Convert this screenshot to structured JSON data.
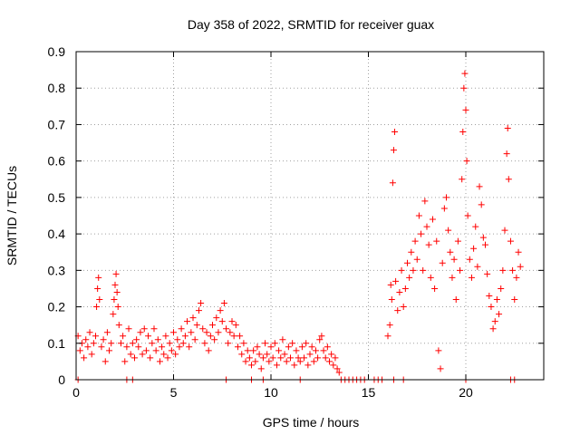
{
  "chart_data": {
    "type": "scatter",
    "title": "Day 358 of 2022, SRMTID for receiver guax",
    "xlabel": "GPS time / hours",
    "ylabel": "SRMTID / TECUs",
    "xlim": [
      0,
      24
    ],
    "ylim": [
      0,
      0.9
    ],
    "grid": true,
    "x_ticks": [
      0,
      5,
      10,
      15,
      20
    ],
    "y_ticks": [
      0,
      0.1,
      0.2,
      0.3,
      0.4,
      0.5,
      0.6,
      0.7,
      0.8,
      0.9
    ],
    "marker": "+",
    "color": "#ff0000",
    "series": [
      {
        "name": "SRMTID",
        "points": [
          [
            0.1,
            0.12
          ],
          [
            0.2,
            0.08
          ],
          [
            0.3,
            0.1
          ],
          [
            0.4,
            0.06
          ],
          [
            0.5,
            0.11
          ],
          [
            0.6,
            0.09
          ],
          [
            0.7,
            0.13
          ],
          [
            0.8,
            0.07
          ],
          [
            0.9,
            0.1
          ],
          [
            1.0,
            0.12
          ],
          [
            1.05,
            0.2
          ],
          [
            1.1,
            0.25
          ],
          [
            1.15,
            0.28
          ],
          [
            1.2,
            0.22
          ],
          [
            1.3,
            0.09
          ],
          [
            1.4,
            0.11
          ],
          [
            1.5,
            0.05
          ],
          [
            1.6,
            0.13
          ],
          [
            1.7,
            0.08
          ],
          [
            1.8,
            0.1
          ],
          [
            1.9,
            0.18
          ],
          [
            1.95,
            0.22
          ],
          [
            2.0,
            0.26
          ],
          [
            2.05,
            0.29
          ],
          [
            2.1,
            0.24
          ],
          [
            2.15,
            0.2
          ],
          [
            2.2,
            0.15
          ],
          [
            2.3,
            0.1
          ],
          [
            2.4,
            0.12
          ],
          [
            2.5,
            0.05
          ],
          [
            2.6,
            0.09
          ],
          [
            2.7,
            0.14
          ],
          [
            2.8,
            0.07
          ],
          [
            2.9,
            0.1
          ],
          [
            3.0,
            0.06
          ],
          [
            3.1,
            0.11
          ],
          [
            3.2,
            0.09
          ],
          [
            3.3,
            0.13
          ],
          [
            3.4,
            0.07
          ],
          [
            3.5,
            0.14
          ],
          [
            3.6,
            0.08
          ],
          [
            3.7,
            0.12
          ],
          [
            3.8,
            0.06
          ],
          [
            3.9,
            0.1
          ],
          [
            4.0,
            0.14
          ],
          [
            4.1,
            0.08
          ],
          [
            4.2,
            0.11
          ],
          [
            4.3,
            0.05
          ],
          [
            4.4,
            0.09
          ],
          [
            4.5,
            0.07
          ],
          [
            4.6,
            0.12
          ],
          [
            4.7,
            0.06
          ],
          [
            4.8,
            0.1
          ],
          [
            4.9,
            0.08
          ],
          [
            5.0,
            0.13
          ],
          [
            5.1,
            0.07
          ],
          [
            5.2,
            0.11
          ],
          [
            5.3,
            0.09
          ],
          [
            5.4,
            0.14
          ],
          [
            5.5,
            0.1
          ],
          [
            5.6,
            0.12
          ],
          [
            5.7,
            0.16
          ],
          [
            5.8,
            0.09
          ],
          [
            5.9,
            0.13
          ],
          [
            6.0,
            0.17
          ],
          [
            6.1,
            0.11
          ],
          [
            6.2,
            0.15
          ],
          [
            6.3,
            0.19
          ],
          [
            6.4,
            0.21
          ],
          [
            6.5,
            0.14
          ],
          [
            6.6,
            0.1
          ],
          [
            6.7,
            0.13
          ],
          [
            6.8,
            0.08
          ],
          [
            6.9,
            0.12
          ],
          [
            7.0,
            0.15
          ],
          [
            7.1,
            0.11
          ],
          [
            7.2,
            0.17
          ],
          [
            7.3,
            0.13
          ],
          [
            7.4,
            0.19
          ],
          [
            7.5,
            0.16
          ],
          [
            7.6,
            0.21
          ],
          [
            7.7,
            0.14
          ],
          [
            7.8,
            0.1
          ],
          [
            7.9,
            0.13
          ],
          [
            8.0,
            0.16
          ],
          [
            8.1,
            0.12
          ],
          [
            8.2,
            0.15
          ],
          [
            8.3,
            0.09
          ],
          [
            8.4,
            0.12
          ],
          [
            8.5,
            0.07
          ],
          [
            8.6,
            0.1
          ],
          [
            8.7,
            0.05
          ],
          [
            8.8,
            0.08
          ],
          [
            8.9,
            0.06
          ],
          [
            9.0,
            0.04
          ],
          [
            9.1,
            0.08
          ],
          [
            9.2,
            0.05
          ],
          [
            9.3,
            0.09
          ],
          [
            9.4,
            0.07
          ],
          [
            9.5,
            0.03
          ],
          [
            9.6,
            0.06
          ],
          [
            9.7,
            0.1
          ],
          [
            9.8,
            0.07
          ],
          [
            9.9,
            0.05
          ],
          [
            10.0,
            0.09
          ],
          [
            10.1,
            0.06
          ],
          [
            10.2,
            0.1
          ],
          [
            10.3,
            0.04
          ],
          [
            10.4,
            0.08
          ],
          [
            10.5,
            0.06
          ],
          [
            10.6,
            0.11
          ],
          [
            10.7,
            0.07
          ],
          [
            10.8,
            0.05
          ],
          [
            10.9,
            0.09
          ],
          [
            11.0,
            0.06
          ],
          [
            11.1,
            0.1
          ],
          [
            11.2,
            0.04
          ],
          [
            11.3,
            0.08
          ],
          [
            11.4,
            0.06
          ],
          [
            11.5,
            0.05
          ],
          [
            11.6,
            0.09
          ],
          [
            11.7,
            0.06
          ],
          [
            11.8,
            0.1
          ],
          [
            11.9,
            0.04
          ],
          [
            12.0,
            0.07
          ],
          [
            12.1,
            0.09
          ],
          [
            12.2,
            0.05
          ],
          [
            12.3,
            0.08
          ],
          [
            12.4,
            0.06
          ],
          [
            12.5,
            0.11
          ],
          [
            12.6,
            0.12
          ],
          [
            12.7,
            0.08
          ],
          [
            12.8,
            0.06
          ],
          [
            12.9,
            0.09
          ],
          [
            13.0,
            0.05
          ],
          [
            13.1,
            0.07
          ],
          [
            13.2,
            0.04
          ],
          [
            13.3,
            0.06
          ],
          [
            13.4,
            0.03
          ],
          [
            13.5,
            0.02
          ],
          [
            16.0,
            0.12
          ],
          [
            16.1,
            0.15
          ],
          [
            16.15,
            0.26
          ],
          [
            16.2,
            0.22
          ],
          [
            16.25,
            0.54
          ],
          [
            16.3,
            0.63
          ],
          [
            16.35,
            0.68
          ],
          [
            16.4,
            0.27
          ],
          [
            16.5,
            0.19
          ],
          [
            16.6,
            0.24
          ],
          [
            16.7,
            0.3
          ],
          [
            16.8,
            0.2
          ],
          [
            16.9,
            0.25
          ],
          [
            17.0,
            0.32
          ],
          [
            17.1,
            0.28
          ],
          [
            17.2,
            0.35
          ],
          [
            17.3,
            0.3
          ],
          [
            17.4,
            0.38
          ],
          [
            17.5,
            0.33
          ],
          [
            17.6,
            0.45
          ],
          [
            17.7,
            0.4
          ],
          [
            17.8,
            0.3
          ],
          [
            17.9,
            0.49
          ],
          [
            18.0,
            0.42
          ],
          [
            18.1,
            0.37
          ],
          [
            18.2,
            0.28
          ],
          [
            18.3,
            0.44
          ],
          [
            18.4,
            0.25
          ],
          [
            18.5,
            0.38
          ],
          [
            18.6,
            0.08
          ],
          [
            18.7,
            0.03
          ],
          [
            18.8,
            0.32
          ],
          [
            18.9,
            0.47
          ],
          [
            19.0,
            0.5
          ],
          [
            19.1,
            0.41
          ],
          [
            19.2,
            0.35
          ],
          [
            19.3,
            0.28
          ],
          [
            19.4,
            0.33
          ],
          [
            19.5,
            0.22
          ],
          [
            19.6,
            0.38
          ],
          [
            19.7,
            0.3
          ],
          [
            19.8,
            0.55
          ],
          [
            19.85,
            0.68
          ],
          [
            19.9,
            0.8
          ],
          [
            19.95,
            0.84
          ],
          [
            20.0,
            0.74
          ],
          [
            20.05,
            0.6
          ],
          [
            20.1,
            0.45
          ],
          [
            20.2,
            0.33
          ],
          [
            20.3,
            0.28
          ],
          [
            20.4,
            0.36
          ],
          [
            20.5,
            0.42
          ],
          [
            20.6,
            0.31
          ],
          [
            20.7,
            0.53
          ],
          [
            20.8,
            0.48
          ],
          [
            20.9,
            0.39
          ],
          [
            21.0,
            0.37
          ],
          [
            21.1,
            0.29
          ],
          [
            21.2,
            0.23
          ],
          [
            21.3,
            0.2
          ],
          [
            21.4,
            0.14
          ],
          [
            21.5,
            0.16
          ],
          [
            21.6,
            0.22
          ],
          [
            21.7,
            0.18
          ],
          [
            21.8,
            0.25
          ],
          [
            21.9,
            0.3
          ],
          [
            22.0,
            0.41
          ],
          [
            22.1,
            0.62
          ],
          [
            22.15,
            0.69
          ],
          [
            22.2,
            0.55
          ],
          [
            22.3,
            0.38
          ],
          [
            22.4,
            0.3
          ],
          [
            22.5,
            0.22
          ],
          [
            22.6,
            0.28
          ],
          [
            22.7,
            0.35
          ],
          [
            22.8,
            0.31
          ],
          [
            0.1,
            0
          ],
          [
            2.9,
            0
          ],
          [
            2.6,
            0
          ],
          [
            7.7,
            0
          ],
          [
            9.0,
            0
          ],
          [
            9.6,
            0
          ],
          [
            11.5,
            0
          ],
          [
            13.6,
            0
          ],
          [
            13.8,
            0
          ],
          [
            14.0,
            0
          ],
          [
            14.2,
            0
          ],
          [
            14.4,
            0
          ],
          [
            14.6,
            0
          ],
          [
            14.8,
            0
          ],
          [
            15.3,
            0
          ],
          [
            15.5,
            0
          ],
          [
            15.7,
            0
          ],
          [
            16.3,
            0
          ],
          [
            16.8,
            0
          ],
          [
            20.0,
            0
          ],
          [
            22.3,
            0
          ],
          [
            22.5,
            0
          ]
        ]
      }
    ]
  }
}
